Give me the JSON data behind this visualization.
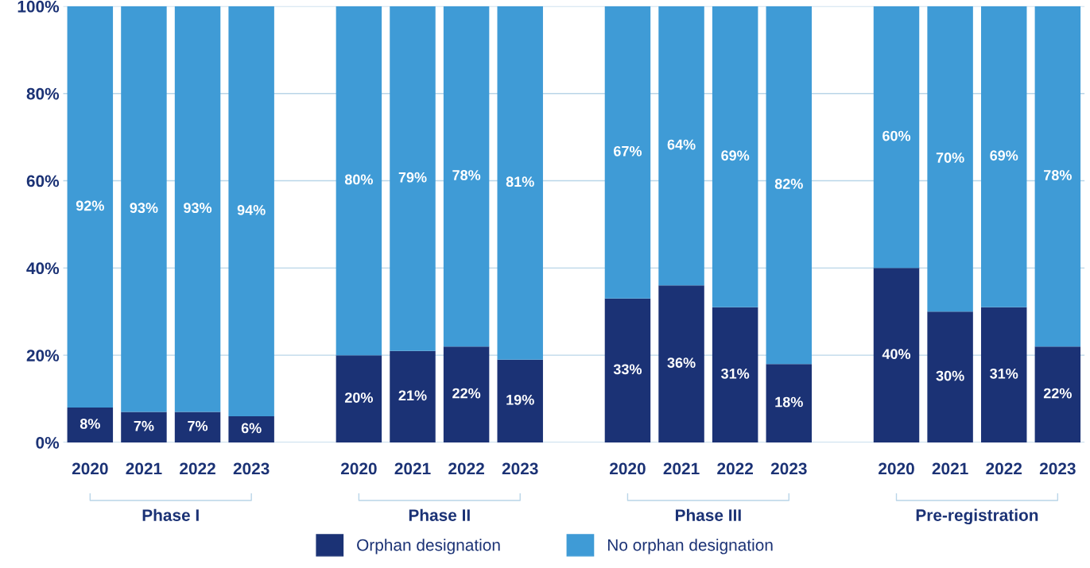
{
  "chart_data": {
    "type": "bar",
    "stacked": true,
    "categories": [
      "2020",
      "2021",
      "2022",
      "2023",
      null,
      "2020",
      "2021",
      "2022",
      "2023",
      null,
      "2020",
      "2021",
      "2022",
      "2023",
      null,
      "2020",
      "2021",
      "2022",
      "2023"
    ],
    "series": [
      {
        "name": "Orphan designation",
        "color": "#1b3275",
        "values": [
          8,
          7,
          7,
          6,
          null,
          20,
          21,
          22,
          19,
          null,
          33,
          36,
          31,
          18,
          null,
          40,
          30,
          31,
          22
        ],
        "value_labels": [
          "8%",
          "7%",
          "7%",
          "6%",
          null,
          "20%",
          "21%",
          "22%",
          "19%",
          null,
          "33%",
          "36%",
          "31%",
          "18%",
          null,
          "40%",
          "30%",
          "31%",
          "22%"
        ]
      },
      {
        "name": "No orphan designation",
        "color": "#3f9bd6",
        "values": [
          92,
          93,
          93,
          94,
          null,
          80,
          79,
          78,
          81,
          null,
          67,
          64,
          69,
          82,
          null,
          60,
          70,
          69,
          78
        ],
        "value_labels": [
          "92%",
          "93%",
          "93%",
          "94%",
          null,
          "80%",
          "79%",
          "78%",
          "81%",
          null,
          "67%",
          "64%",
          "69%",
          "82%",
          null,
          "60%",
          "70%",
          "69%",
          "78%"
        ]
      }
    ],
    "ylim": [
      0,
      100
    ],
    "yticks": [
      {
        "value": 0,
        "label": "0%"
      },
      {
        "value": 20,
        "label": "20%"
      },
      {
        "value": 40,
        "label": "40%"
      },
      {
        "value": 60,
        "label": "60%"
      },
      {
        "value": 80,
        "label": "80%"
      },
      {
        "value": 100,
        "label": "100%"
      }
    ],
    "grid": "y",
    "legend": "bottom",
    "annotations": [
      "Phase I",
      "Phase II",
      "Phase III",
      "Pre-registration"
    ]
  }
}
